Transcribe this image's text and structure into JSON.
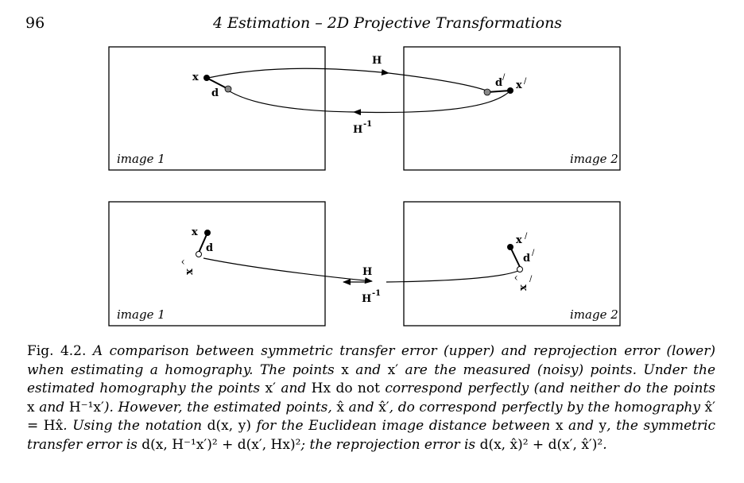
{
  "header": {
    "page_number": "96",
    "running_title": "4 Estimation – 2D Projective Transformations"
  },
  "figure": {
    "upper": {
      "image_left_label": "image 1",
      "image_right_label": "image 2",
      "x_label": "x",
      "d_label": "d",
      "d_prime_label": "d",
      "prime_mark": "/",
      "x_prime_label": "x",
      "h_label": "H",
      "h_inv_label": "H",
      "inv_exponent": "-1"
    },
    "lower": {
      "image_left_label": "image 1",
      "image_right_label": "image 2",
      "x_label": "x",
      "d_label": "d",
      "xhat_label": "x",
      "hat_mark": "^",
      "x_prime_label": "x",
      "d_prime_label": "d",
      "xhat_prime_label": "x",
      "prime_mark": "/",
      "h_label": "H",
      "h_inv_label": "H",
      "inv_exponent": "-1"
    }
  },
  "caption": {
    "label": "Fig. 4.2.",
    "p1": "A comparison between symmetric transfer error (upper) and reprojection error (lower) when estimating a homography. The points",
    "x": "x",
    "and": "and",
    "xp": "x′",
    "p2": "are the measured (noisy) points. Under the estimated homography the points",
    "hx": "Hx",
    "do_not": "do not",
    "p3": "correspond perfectly (and neither do the points",
    "hinvxp": "H⁻¹x′",
    "p4": "). However, the estimated points,",
    "xhat": "x̂",
    "xhatp": "x̂′",
    "p5": ", do correspond perfectly by the homography",
    "eq": "x̂′ = Hx̂",
    "p6": ". Using the notation",
    "dxy": "d(x, y)",
    "p7": "for the Euclidean image distance between",
    "y": "y",
    "p8": ", the symmetric transfer error is",
    "ste": "d(x, H⁻¹x′)² + d(x′, Hx)²",
    "p9": "; the reprojection error is",
    "re": "d(x, x̂)² + d(x′, x̂′)²",
    "end": "."
  }
}
